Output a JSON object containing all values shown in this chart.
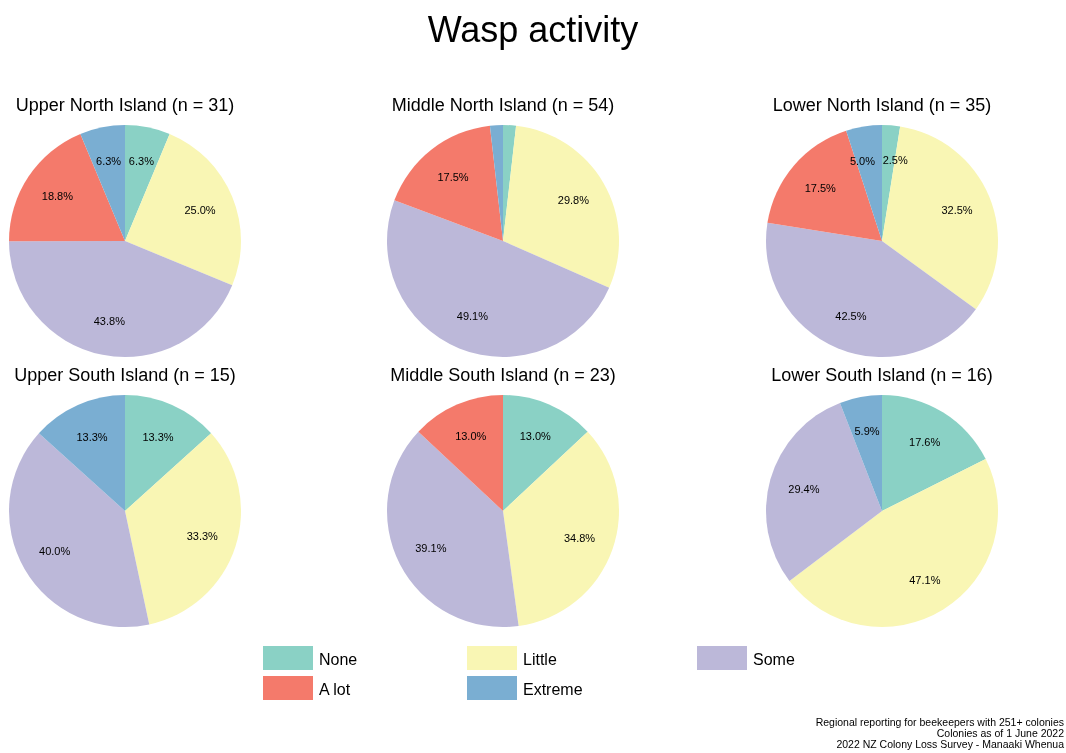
{
  "chart_data": {
    "type": "pie",
    "title": "Wasp activity",
    "categories": [
      "None",
      "Little",
      "Some",
      "A lot",
      "Extreme"
    ],
    "colors": [
      "#8ad1c5",
      "#f9f6b4",
      "#bcb8d9",
      "#f47a6b",
      "#7aaed2"
    ],
    "legend": "bottom",
    "series": [
      {
        "name": "Upper North Island (n = 31)",
        "values": [
          6.3,
          25.0,
          43.8,
          18.8,
          6.3
        ],
        "value_labels": [
          "6.3%",
          "25.0%",
          "43.8%",
          "18.8%",
          "6.3%"
        ]
      },
      {
        "name": "Middle North Island (n = 54)",
        "values": [
          1.8,
          29.8,
          49.1,
          17.5,
          1.8
        ],
        "value_labels": [
          null,
          "29.8%",
          "49.1%",
          "17.5%",
          null
        ]
      },
      {
        "name": "Lower North Island (n = 35)",
        "values": [
          2.5,
          32.5,
          42.5,
          17.5,
          5.0
        ],
        "value_labels": [
          "2.5%",
          "32.5%",
          "42.5%",
          "17.5%",
          "5.0%"
        ]
      },
      {
        "name": "Upper South Island (n = 15)",
        "values": [
          13.3,
          33.3,
          40.0,
          0,
          13.3
        ],
        "value_labels": [
          "13.3%",
          "33.3%",
          "40.0%",
          null,
          "13.3%"
        ]
      },
      {
        "name": "Middle South Island (n = 23)",
        "values": [
          13.0,
          34.8,
          39.1,
          13.0,
          0
        ],
        "value_labels": [
          "13.0%",
          "34.8%",
          "39.1%",
          "13.0%",
          null
        ]
      },
      {
        "name": "Lower South Island (n = 16)",
        "values": [
          17.6,
          47.1,
          29.4,
          0,
          5.9
        ],
        "value_labels": [
          "17.6%",
          "47.1%",
          "29.4%",
          null,
          "5.9%"
        ]
      }
    ],
    "annotations": [
      "Regional reporting for beekeepers with 251+ colonies",
      "Colonies as of 1 June 2022",
      "2022 NZ Colony Loss Survey - Manaaki Whenua"
    ]
  }
}
